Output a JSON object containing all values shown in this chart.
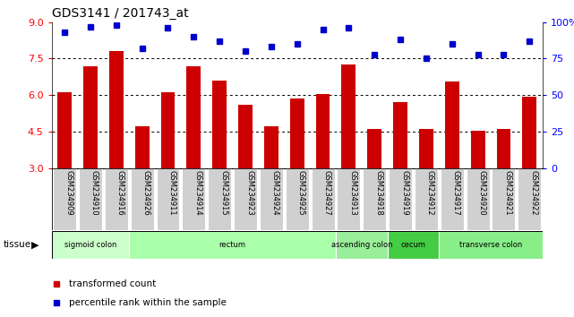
{
  "title": "GDS3141 / 201743_at",
  "samples": [
    "GSM234909",
    "GSM234910",
    "GSM234916",
    "GSM234926",
    "GSM234911",
    "GSM234914",
    "GSM234915",
    "GSM234923",
    "GSM234924",
    "GSM234925",
    "GSM234927",
    "GSM234913",
    "GSM234918",
    "GSM234919",
    "GSM234912",
    "GSM234917",
    "GSM234920",
    "GSM234921",
    "GSM234922"
  ],
  "bar_values": [
    6.1,
    7.2,
    7.8,
    4.7,
    6.1,
    7.2,
    6.6,
    5.6,
    4.7,
    5.85,
    6.05,
    7.25,
    4.6,
    5.7,
    4.6,
    6.55,
    4.55,
    4.6,
    5.95
  ],
  "dot_values": [
    93,
    97,
    98,
    82,
    96,
    90,
    87,
    80,
    83,
    85,
    95,
    96,
    78,
    88,
    75,
    85,
    78,
    78,
    87
  ],
  "bar_color": "#cc0000",
  "dot_color": "#0000cc",
  "ylim_left": [
    3,
    9
  ],
  "ylim_right": [
    0,
    100
  ],
  "yticks_left": [
    3,
    4.5,
    6,
    7.5,
    9
  ],
  "yticks_right": [
    0,
    25,
    50,
    75,
    100
  ],
  "grid_lines": [
    4.5,
    6.0,
    7.5
  ],
  "tissue_groups": [
    {
      "label": "sigmoid colon",
      "start": 0,
      "end": 3,
      "color": "#ccffcc"
    },
    {
      "label": "rectum",
      "start": 3,
      "end": 11,
      "color": "#aaffaa"
    },
    {
      "label": "ascending colon",
      "start": 11,
      "end": 13,
      "color": "#99ee99"
    },
    {
      "label": "cecum",
      "start": 13,
      "end": 15,
      "color": "#44cc44"
    },
    {
      "label": "transverse colon",
      "start": 15,
      "end": 19,
      "color": "#88ee88"
    }
  ],
  "legend_items": [
    {
      "label": "transformed count",
      "color": "#cc0000"
    },
    {
      "label": "percentile rank within the sample",
      "color": "#0000cc"
    }
  ],
  "tissue_label": "tissue",
  "bar_width": 0.55,
  "label_bg_color": "#d0d0d0",
  "label_border_color": "#aaaaaa"
}
